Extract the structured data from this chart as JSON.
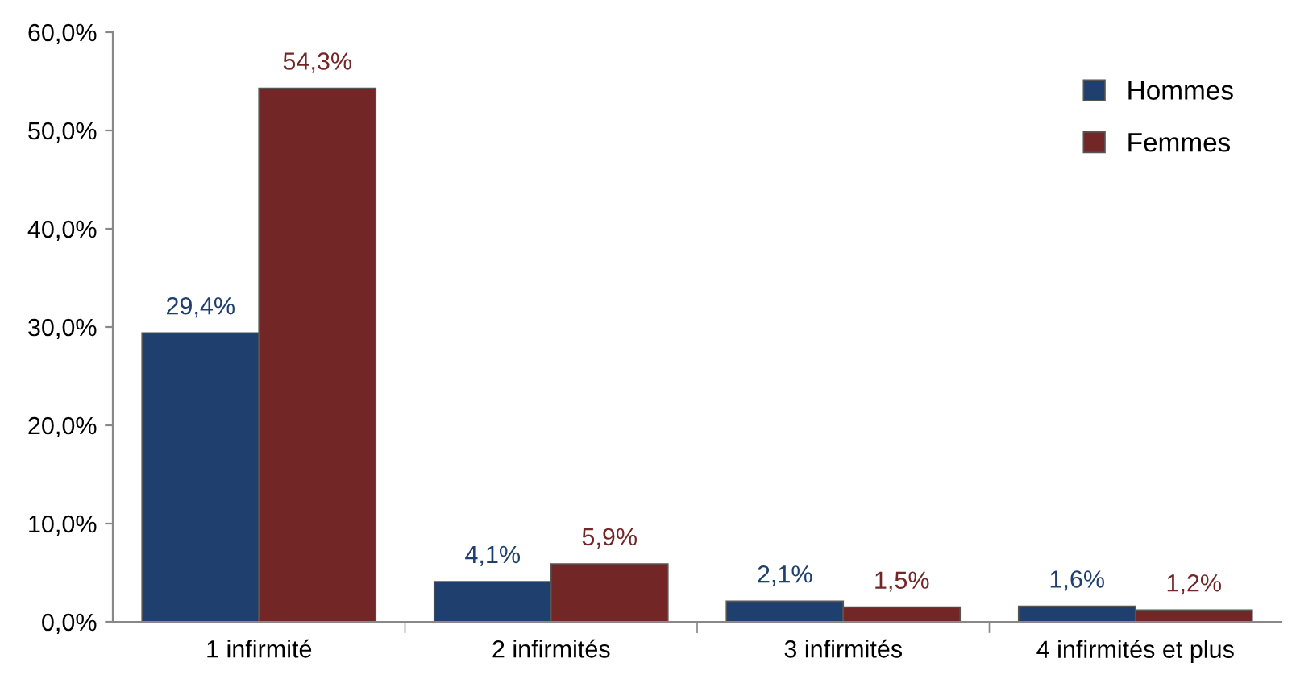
{
  "chart_data": {
    "type": "bar",
    "categories": [
      "1 infirmité",
      "2 infirmités",
      "3 infirmités",
      "4 infirmités et plus"
    ],
    "series": [
      {
        "name": "Hommes",
        "color": "#1f3f6e",
        "values": [
          29.4,
          4.1,
          2.1,
          1.6
        ],
        "value_labels": [
          "29,4%",
          "4,1%",
          "2,1%",
          "1,6%"
        ]
      },
      {
        "name": "Femmes",
        "color": "#722626",
        "values": [
          54.3,
          5.9,
          1.5,
          1.2
        ],
        "value_labels": [
          "54,3%",
          "5,9%",
          "1,5%",
          "1,2%"
        ]
      }
    ],
    "ylim": [
      0,
      60
    ],
    "yticks": [
      {
        "value": 0,
        "label": "0,0%"
      },
      {
        "value": 10,
        "label": "10,0%"
      },
      {
        "value": 20,
        "label": "20,0%"
      },
      {
        "value": 30,
        "label": "30,0%"
      },
      {
        "value": 40,
        "label": "40,0%"
      },
      {
        "value": 50,
        "label": "50,0%"
      },
      {
        "value": 60,
        "label": "60,0%"
      }
    ],
    "grid": false,
    "legend": "top right"
  }
}
